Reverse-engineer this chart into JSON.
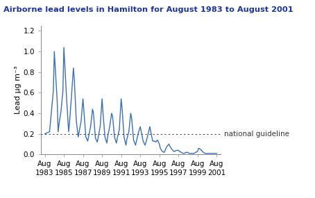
{
  "title": "Airborne lead levels in Hamilton for August 1983 to August 2001",
  "ylabel": "Lead μg m⁻³",
  "guideline_value": 0.2,
  "guideline_label": "national guideline",
  "ylim": [
    0,
    1.25
  ],
  "yticks": [
    0.0,
    0.2,
    0.4,
    0.6,
    0.8,
    1.0,
    1.2
  ],
  "line_color": "#3a6fb5",
  "guideline_color": "#444444",
  "title_color": "#1a3399",
  "background_color": "#ffffff",
  "xtick_labels": [
    "Aug\n1983",
    "Aug\n1985",
    "Aug\n1987",
    "Aug\n1989",
    "Aug\n1991",
    "Aug\n1993",
    "Aug\n1995",
    "Aug\n1997",
    "Aug\n1999",
    "Aug\n2001"
  ],
  "xtick_positions": [
    1983.6,
    1985.6,
    1987.6,
    1989.6,
    1991.6,
    1993.6,
    1995.6,
    1997.6,
    1999.6,
    2001.6
  ],
  "xlim": [
    1983.2,
    2002.0
  ],
  "data_x": [
    1983.6,
    1984.1,
    1984.5,
    1984.6,
    1984.9,
    1985.0,
    1985.1,
    1985.3,
    1985.5,
    1985.6,
    1985.9,
    1986.1,
    1986.2,
    1986.4,
    1986.6,
    1986.7,
    1986.9,
    1987.1,
    1987.2,
    1987.4,
    1987.6,
    1987.7,
    1987.9,
    1988.1,
    1988.2,
    1988.4,
    1988.6,
    1988.7,
    1988.9,
    1989.1,
    1989.2,
    1989.4,
    1989.6,
    1989.7,
    1989.9,
    1990.1,
    1990.2,
    1990.4,
    1990.6,
    1990.7,
    1990.9,
    1991.1,
    1991.2,
    1991.4,
    1991.6,
    1991.7,
    1991.9,
    1992.1,
    1992.2,
    1992.4,
    1992.6,
    1992.7,
    1992.9,
    1993.1,
    1993.2,
    1993.4,
    1993.6,
    1993.7,
    1993.9,
    1994.1,
    1994.2,
    1994.4,
    1994.6,
    1994.7,
    1994.9,
    1995.1,
    1995.2,
    1995.4,
    1995.6,
    1995.7,
    1995.9,
    1996.1,
    1996.2,
    1996.4,
    1996.6,
    1996.7,
    1996.9,
    1997.1,
    1997.2,
    1997.4,
    1997.6,
    1997.7,
    1997.9,
    1998.1,
    1998.2,
    1998.4,
    1998.6,
    1998.7,
    1998.9,
    1999.1,
    1999.2,
    1999.4,
    1999.6,
    1999.7,
    1999.9,
    2000.1,
    2000.2,
    2000.4,
    2000.6,
    2000.7,
    2000.9,
    2001.1,
    2001.2,
    2001.4,
    2001.6
  ],
  "data_y": [
    0.2,
    0.22,
    0.62,
    1.0,
    0.52,
    0.22,
    0.3,
    0.42,
    0.62,
    1.04,
    0.52,
    0.22,
    0.32,
    0.57,
    0.84,
    0.72,
    0.33,
    0.17,
    0.22,
    0.32,
    0.54,
    0.42,
    0.17,
    0.13,
    0.18,
    0.27,
    0.44,
    0.4,
    0.16,
    0.12,
    0.17,
    0.27,
    0.54,
    0.4,
    0.17,
    0.11,
    0.18,
    0.27,
    0.4,
    0.37,
    0.17,
    0.11,
    0.16,
    0.24,
    0.54,
    0.44,
    0.17,
    0.09,
    0.15,
    0.22,
    0.4,
    0.35,
    0.14,
    0.09,
    0.13,
    0.21,
    0.27,
    0.22,
    0.13,
    0.09,
    0.12,
    0.19,
    0.27,
    0.22,
    0.13,
    0.13,
    0.12,
    0.14,
    0.1,
    0.06,
    0.03,
    0.02,
    0.04,
    0.08,
    0.1,
    0.08,
    0.05,
    0.03,
    0.03,
    0.04,
    0.04,
    0.03,
    0.02,
    0.01,
    0.01,
    0.02,
    0.02,
    0.01,
    0.01,
    0.01,
    0.01,
    0.02,
    0.03,
    0.06,
    0.05,
    0.03,
    0.02,
    0.01,
    0.01,
    0.01,
    0.01,
    0.01,
    0.01,
    0.01,
    0.01
  ]
}
